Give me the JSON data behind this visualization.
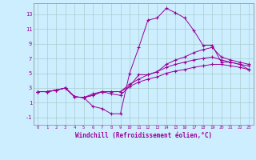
{
  "xlabel": "Windchill (Refroidissement éolien,°C)",
  "background_color": "#cceeff",
  "grid_color": "#aacccc",
  "line_color": "#990099",
  "xlim": [
    -0.5,
    23.5
  ],
  "ylim": [
    -2,
    14.5
  ],
  "xticks": [
    0,
    1,
    2,
    3,
    4,
    5,
    6,
    7,
    8,
    9,
    10,
    11,
    12,
    13,
    14,
    15,
    16,
    17,
    18,
    19,
    20,
    21,
    22,
    23
  ],
  "yticks": [
    -1,
    1,
    3,
    5,
    7,
    9,
    11,
    13
  ],
  "series": [
    [
      2.5,
      2.5,
      2.7,
      3.0,
      1.8,
      1.7,
      0.5,
      0.2,
      -0.5,
      -0.5,
      5.0,
      8.5,
      12.2,
      12.5,
      13.8,
      13.2,
      12.5,
      10.8,
      8.8,
      8.8,
      6.5,
      6.5,
      6.2,
      5.5
    ],
    [
      2.5,
      2.5,
      2.7,
      3.0,
      1.8,
      1.7,
      2.2,
      2.5,
      2.2,
      2.0,
      3.2,
      4.8,
      4.8,
      5.2,
      6.2,
      6.8,
      7.2,
      7.8,
      8.2,
      8.5,
      7.2,
      6.8,
      6.5,
      6.2
    ],
    [
      2.5,
      2.5,
      2.7,
      3.0,
      1.8,
      1.7,
      2.0,
      2.5,
      2.5,
      2.5,
      3.5,
      4.2,
      4.8,
      5.2,
      5.8,
      6.2,
      6.5,
      6.8,
      7.0,
      7.2,
      6.8,
      6.5,
      6.2,
      6.0
    ],
    [
      2.5,
      2.5,
      2.7,
      3.0,
      1.8,
      1.7,
      2.0,
      2.5,
      2.5,
      2.5,
      3.2,
      3.8,
      4.2,
      4.5,
      5.0,
      5.3,
      5.5,
      5.8,
      6.0,
      6.2,
      6.2,
      6.0,
      5.8,
      5.5
    ]
  ]
}
